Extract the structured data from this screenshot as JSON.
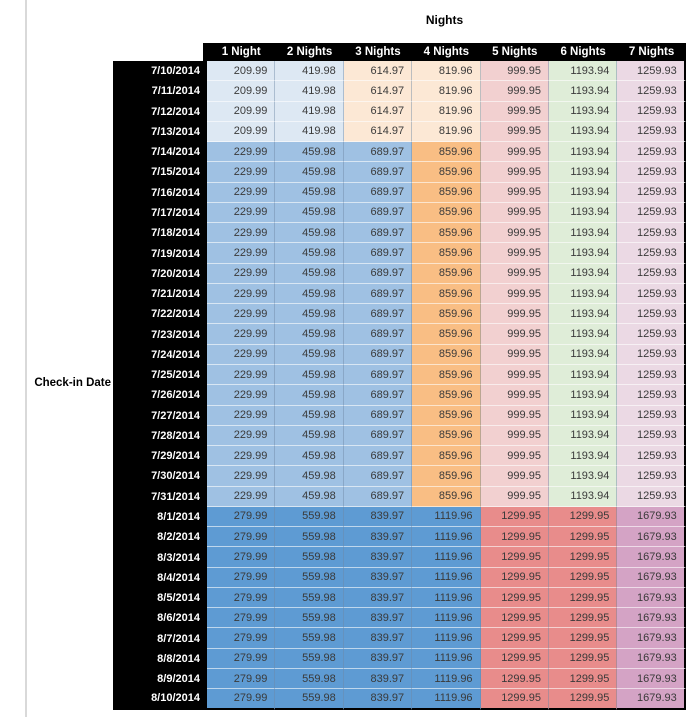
{
  "table_title": "Nights",
  "row_axis_label": "Check-in Date",
  "colors": {
    "header_bg": "#000000",
    "header_text": "#ffffff",
    "value_text": "#3a3a3a",
    "left_rule": "#d9d9d9"
  },
  "chart_data": {
    "type": "table",
    "title": "Nights",
    "row_axis_label": "Check-in Date",
    "columns": [
      "1 Night",
      "2 Nights",
      "3 Nights",
      "4 Nights",
      "5 Nights",
      "6 Nights",
      "7 Nights"
    ],
    "row_groups": {
      "early_july": {
        "colors": [
          "#DDE8F3",
          "#DDE8F3",
          "#FCE8D5",
          "#FCE8D5",
          "#F2D0D0",
          "#DFEDD8",
          "#EBD9E4"
        ]
      },
      "mid_july": {
        "colors": [
          "#9FC1E3",
          "#9FC1E3",
          "#9FC1E3",
          "#F9BE84",
          "#F2D0D0",
          "#DFEDD8",
          "#EBD9E4"
        ]
      },
      "august": {
        "colors": [
          "#5E9BD3",
          "#5E9BD3",
          "#5E9BD3",
          "#5E9BD3",
          "#E88C8B",
          "#E88C8B",
          "#D4A3C5"
        ]
      }
    },
    "rows": [
      {
        "date": "7/10/2014",
        "group": "early_july",
        "values": [
          209.99,
          419.98,
          614.97,
          819.96,
          999.95,
          1193.94,
          1259.93
        ]
      },
      {
        "date": "7/11/2014",
        "group": "early_july",
        "values": [
          209.99,
          419.98,
          614.97,
          819.96,
          999.95,
          1193.94,
          1259.93
        ]
      },
      {
        "date": "7/12/2014",
        "group": "early_july",
        "values": [
          209.99,
          419.98,
          614.97,
          819.96,
          999.95,
          1193.94,
          1259.93
        ]
      },
      {
        "date": "7/13/2014",
        "group": "early_july",
        "values": [
          209.99,
          419.98,
          614.97,
          819.96,
          999.95,
          1193.94,
          1259.93
        ]
      },
      {
        "date": "7/14/2014",
        "group": "mid_july",
        "values": [
          229.99,
          459.98,
          689.97,
          859.96,
          999.95,
          1193.94,
          1259.93
        ]
      },
      {
        "date": "7/15/2014",
        "group": "mid_july",
        "values": [
          229.99,
          459.98,
          689.97,
          859.96,
          999.95,
          1193.94,
          1259.93
        ]
      },
      {
        "date": "7/16/2014",
        "group": "mid_july",
        "values": [
          229.99,
          459.98,
          689.97,
          859.96,
          999.95,
          1193.94,
          1259.93
        ]
      },
      {
        "date": "7/17/2014",
        "group": "mid_july",
        "values": [
          229.99,
          459.98,
          689.97,
          859.96,
          999.95,
          1193.94,
          1259.93
        ]
      },
      {
        "date": "7/18/2014",
        "group": "mid_july",
        "values": [
          229.99,
          459.98,
          689.97,
          859.96,
          999.95,
          1193.94,
          1259.93
        ]
      },
      {
        "date": "7/19/2014",
        "group": "mid_july",
        "values": [
          229.99,
          459.98,
          689.97,
          859.96,
          999.95,
          1193.94,
          1259.93
        ]
      },
      {
        "date": "7/20/2014",
        "group": "mid_july",
        "values": [
          229.99,
          459.98,
          689.97,
          859.96,
          999.95,
          1193.94,
          1259.93
        ]
      },
      {
        "date": "7/21/2014",
        "group": "mid_july",
        "values": [
          229.99,
          459.98,
          689.97,
          859.96,
          999.95,
          1193.94,
          1259.93
        ]
      },
      {
        "date": "7/22/2014",
        "group": "mid_july",
        "values": [
          229.99,
          459.98,
          689.97,
          859.96,
          999.95,
          1193.94,
          1259.93
        ]
      },
      {
        "date": "7/23/2014",
        "group": "mid_july",
        "values": [
          229.99,
          459.98,
          689.97,
          859.96,
          999.95,
          1193.94,
          1259.93
        ]
      },
      {
        "date": "7/24/2014",
        "group": "mid_july",
        "values": [
          229.99,
          459.98,
          689.97,
          859.96,
          999.95,
          1193.94,
          1259.93
        ]
      },
      {
        "date": "7/25/2014",
        "group": "mid_july",
        "values": [
          229.99,
          459.98,
          689.97,
          859.96,
          999.95,
          1193.94,
          1259.93
        ]
      },
      {
        "date": "7/26/2014",
        "group": "mid_july",
        "values": [
          229.99,
          459.98,
          689.97,
          859.96,
          999.95,
          1193.94,
          1259.93
        ]
      },
      {
        "date": "7/27/2014",
        "group": "mid_july",
        "values": [
          229.99,
          459.98,
          689.97,
          859.96,
          999.95,
          1193.94,
          1259.93
        ]
      },
      {
        "date": "7/28/2014",
        "group": "mid_july",
        "values": [
          229.99,
          459.98,
          689.97,
          859.96,
          999.95,
          1193.94,
          1259.93
        ]
      },
      {
        "date": "7/29/2014",
        "group": "mid_july",
        "values": [
          229.99,
          459.98,
          689.97,
          859.96,
          999.95,
          1193.94,
          1259.93
        ]
      },
      {
        "date": "7/30/2014",
        "group": "mid_july",
        "values": [
          229.99,
          459.98,
          689.97,
          859.96,
          999.95,
          1193.94,
          1259.93
        ]
      },
      {
        "date": "7/31/2014",
        "group": "mid_july",
        "values": [
          229.99,
          459.98,
          689.97,
          859.96,
          999.95,
          1193.94,
          1259.93
        ]
      },
      {
        "date": "8/1/2014",
        "group": "august",
        "values": [
          279.99,
          559.98,
          839.97,
          1119.96,
          1299.95,
          1299.95,
          1679.93
        ]
      },
      {
        "date": "8/2/2014",
        "group": "august",
        "values": [
          279.99,
          559.98,
          839.97,
          1119.96,
          1299.95,
          1299.95,
          1679.93
        ]
      },
      {
        "date": "8/3/2014",
        "group": "august",
        "values": [
          279.99,
          559.98,
          839.97,
          1119.96,
          1299.95,
          1299.95,
          1679.93
        ]
      },
      {
        "date": "8/4/2014",
        "group": "august",
        "values": [
          279.99,
          559.98,
          839.97,
          1119.96,
          1299.95,
          1299.95,
          1679.93
        ]
      },
      {
        "date": "8/5/2014",
        "group": "august",
        "values": [
          279.99,
          559.98,
          839.97,
          1119.96,
          1299.95,
          1299.95,
          1679.93
        ]
      },
      {
        "date": "8/6/2014",
        "group": "august",
        "values": [
          279.99,
          559.98,
          839.97,
          1119.96,
          1299.95,
          1299.95,
          1679.93
        ]
      },
      {
        "date": "8/7/2014",
        "group": "august",
        "values": [
          279.99,
          559.98,
          839.97,
          1119.96,
          1299.95,
          1299.95,
          1679.93
        ]
      },
      {
        "date": "8/8/2014",
        "group": "august",
        "values": [
          279.99,
          559.98,
          839.97,
          1119.96,
          1299.95,
          1299.95,
          1679.93
        ]
      },
      {
        "date": "8/9/2014",
        "group": "august",
        "values": [
          279.99,
          559.98,
          839.97,
          1119.96,
          1299.95,
          1299.95,
          1679.93
        ]
      },
      {
        "date": "8/10/2014",
        "group": "august",
        "values": [
          279.99,
          559.98,
          839.97,
          1119.96,
          1299.95,
          1299.95,
          1679.93
        ]
      }
    ]
  }
}
